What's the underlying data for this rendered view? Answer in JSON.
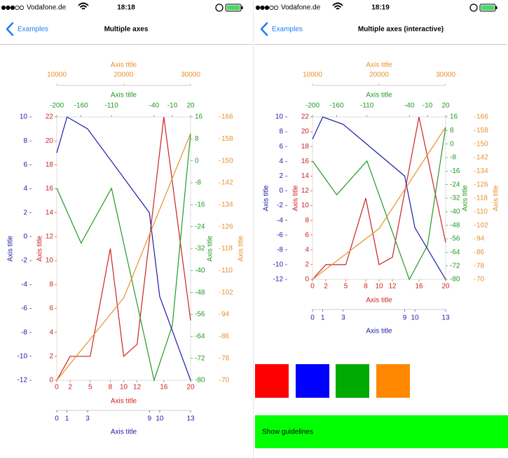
{
  "screens": [
    {
      "carrier": "Vodafone.de",
      "time": "18:18",
      "back": "Examples",
      "title": "Multiple axes"
    },
    {
      "carrier": "Vodafone.de",
      "time": "18:19",
      "back": "Examples",
      "title": "Multiple axes (interactive)"
    }
  ],
  "chart_data": [
    {
      "type": "line",
      "series": [
        {
          "color": "#cc2222",
          "x_side": "bottom",
          "y_side": "left",
          "x_title": "Axis title",
          "y_title": "Axis title",
          "x": [
            0,
            2,
            5,
            8,
            10,
            12,
            16,
            20
          ],
          "values": [
            0,
            2,
            2,
            11,
            2,
            3,
            22,
            5
          ],
          "xlim": [
            0,
            20
          ],
          "xticks": [
            0,
            2,
            5,
            8,
            10,
            12,
            16,
            20
          ],
          "ylim": [
            0,
            22
          ],
          "yticks": [
            0,
            2,
            4,
            6,
            8,
            10,
            12,
            14,
            16,
            18,
            20,
            22
          ]
        },
        {
          "color": "#229a22",
          "x_side": "top",
          "y_side": "right",
          "x_title": "Axis title",
          "y_title": "Axis title",
          "x": [
            -200,
            -160,
            -110,
            -40,
            -10,
            20
          ],
          "values": [
            -10,
            -30,
            -10,
            -80,
            -60,
            10
          ],
          "xlim": [
            -200,
            20
          ],
          "xticks": [
            -200,
            -160,
            -110,
            -40,
            -10,
            20
          ],
          "ylim": [
            -80,
            16
          ],
          "yticks": [
            16,
            8,
            0,
            -8,
            -16,
            -24,
            -32,
            -40,
            -48,
            -56,
            -64,
            -72,
            -80
          ]
        },
        {
          "color": "#1c1ca8",
          "x_side": "bottom",
          "y_side": "left",
          "x_title": "Axis title",
          "y_title": "Axis title",
          "x": [
            0,
            1,
            3,
            9,
            10,
            13
          ],
          "values": [
            7,
            10,
            9,
            2,
            -5,
            -12
          ],
          "xlim": [
            0,
            13
          ],
          "xticks": [
            0,
            1,
            3,
            9,
            10,
            13
          ],
          "ylim": [
            -12,
            10
          ],
          "yticks": [
            10,
            8,
            6,
            4,
            2,
            0,
            -2,
            -4,
            -6,
            -8,
            -10,
            -12
          ]
        },
        {
          "color": "#e8902a",
          "x_side": "top",
          "y_side": "right",
          "x_title": "Axis title",
          "y_title": "Axis title",
          "x": [
            10000,
            20000,
            30000
          ],
          "values": [
            70,
            100,
            160
          ],
          "xlim": [
            10000,
            30000
          ],
          "xticks": [
            10000,
            20000,
            30000
          ],
          "ylim": [
            70,
            166
          ],
          "yticks": [
            166,
            158,
            150,
            142,
            134,
            126,
            118,
            110,
            102,
            94,
            86,
            78,
            70
          ]
        }
      ]
    },
    {
      "type": "line",
      "series": [
        {
          "color": "#cc2222",
          "x_side": "bottom",
          "y_side": "left",
          "x_title": "Axis title",
          "y_title": "Axis title",
          "x": [
            0,
            2,
            5,
            8,
            10,
            12,
            16,
            20
          ],
          "values": [
            0,
            2,
            2,
            11,
            2,
            3,
            22,
            5
          ],
          "xlim": [
            0,
            20
          ],
          "xticks": [
            0,
            2,
            5,
            8,
            10,
            12,
            16,
            20
          ],
          "ylim": [
            0,
            22
          ],
          "yticks": [
            0,
            2,
            4,
            6,
            8,
            10,
            12,
            14,
            16,
            18,
            20,
            22
          ]
        },
        {
          "color": "#229a22",
          "x_side": "top",
          "y_side": "right",
          "x_title": "Axis title",
          "y_title": "Axis title",
          "x": [
            -200,
            -160,
            -110,
            -40,
            -10,
            20
          ],
          "values": [
            -10,
            -30,
            -10,
            -80,
            -60,
            10
          ],
          "xlim": [
            -200,
            20
          ],
          "xticks": [
            -200,
            -160,
            -110,
            -40,
            -10,
            20
          ],
          "ylim": [
            -80,
            16
          ],
          "yticks": [
            16,
            8,
            0,
            -8,
            -16,
            -24,
            -32,
            -40,
            -48,
            -56,
            -64,
            -72,
            -80
          ]
        },
        {
          "color": "#1c1ca8",
          "x_side": "bottom",
          "y_side": "left",
          "x_title": "Axis title",
          "y_title": "Axis title",
          "x": [
            0,
            1,
            3,
            9,
            10,
            13
          ],
          "values": [
            7,
            10,
            9,
            2,
            -5,
            -12
          ],
          "xlim": [
            0,
            13
          ],
          "xticks": [
            0,
            1,
            3,
            9,
            10,
            13
          ],
          "ylim": [
            -12,
            10
          ],
          "yticks": [
            10,
            8,
            6,
            4,
            2,
            0,
            -2,
            -4,
            -6,
            -8,
            -10,
            -12
          ]
        },
        {
          "color": "#e8902a",
          "x_side": "top",
          "y_side": "right",
          "x_title": "Axis title",
          "y_title": "Axis title",
          "x": [
            10000,
            20000,
            30000
          ],
          "values": [
            70,
            100,
            160
          ],
          "xlim": [
            10000,
            30000
          ],
          "xticks": [
            10000,
            20000,
            30000
          ],
          "ylim": [
            70,
            166
          ],
          "yticks": [
            166,
            158,
            150,
            142,
            134,
            126,
            118,
            110,
            102,
            94,
            86,
            78,
            70
          ]
        }
      ]
    }
  ],
  "swatches": [
    "#ff0000",
    "#0000ff",
    "#00aa00",
    "#ff8800"
  ],
  "button": {
    "label": "Show guidelines",
    "color": "#00ff00"
  }
}
